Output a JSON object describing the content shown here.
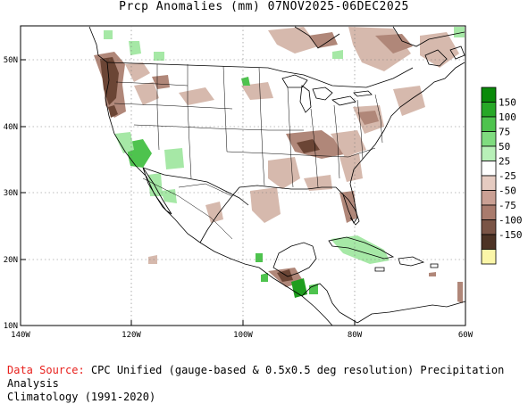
{
  "title": "Prcp Anomalies (mm) 07NOV2025-06DEC2025",
  "lat_labels": [
    "50N",
    "40N",
    "30N",
    "20N",
    "10N"
  ],
  "lon_labels": [
    "140W",
    "120W",
    "100W",
    "80W",
    "60W"
  ],
  "colorbar": {
    "labels": [
      "150",
      "100",
      "75",
      "50",
      "25",
      "-25",
      "-50",
      "-75",
      "-100",
      "-150"
    ],
    "colors": [
      "#0a8a0a",
      "#27a827",
      "#4ec34e",
      "#7fdc7f",
      "#b8f0b8",
      "#ffffff",
      "#e5cbc1",
      "#caa094",
      "#a97b6d",
      "#7a5446",
      "#4d3325",
      "#fbf6a8"
    ]
  },
  "footer": {
    "source_label": "Data Source:",
    "source_text": "CPC Unified (gauge-based & 0.5x0.5 deg resolution) Precipitation Analysis",
    "climatology": "Climatology (1991-2020)"
  },
  "colors": {
    "wet": "#4ec34e",
    "wet_light": "#a6e8a6",
    "wet_strong": "#1f9e1f",
    "dry_light": "#d6b9ad",
    "dry_mid": "#b08779",
    "dry_dark": "#6b4535",
    "border": "#000000",
    "grid": "#7a7a7a"
  }
}
